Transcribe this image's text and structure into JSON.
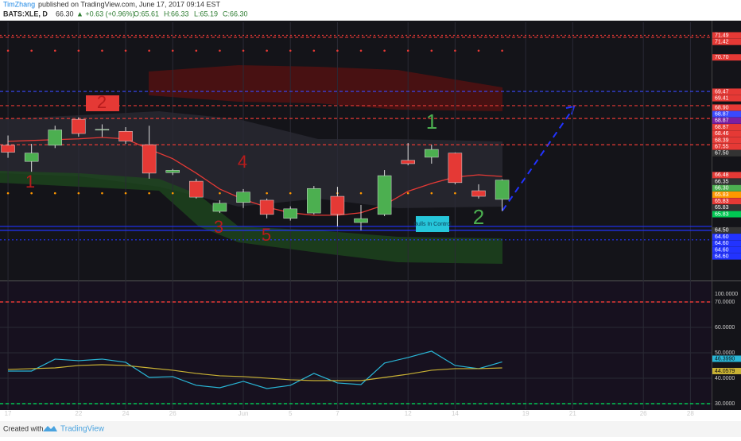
{
  "header": {
    "author": "TimZhang",
    "published": "published on TradingView.com, June 17, 2017 09:14 EST",
    "symbol": "BATS:XLE, D",
    "last": "66.30",
    "change": "▲ +0.63 (+0.96%)",
    "open": "O:65.61",
    "high": "H:66.33",
    "low": "L:65.19",
    "close": "C:66.30"
  },
  "footer": {
    "created": "Created with",
    "brand": "TradingView"
  },
  "chart_data": [
    {
      "type": "candlestick",
      "xlim": [
        -0.34,
        29.9
      ],
      "xticks": [
        {
          "value": 0,
          "label": "17"
        },
        {
          "value": 3,
          "label": "22"
        },
        {
          "value": 5,
          "label": "24"
        },
        {
          "value": 7,
          "label": "26"
        },
        {
          "value": 10,
          "label": "Jun"
        },
        {
          "value": 12,
          "label": "5"
        },
        {
          "value": 14,
          "label": "7"
        },
        {
          "value": 17,
          "label": "12"
        },
        {
          "value": 19,
          "label": "14"
        },
        {
          "value": 22,
          "label": "19"
        },
        {
          "value": 24,
          "label": "21"
        },
        {
          "value": 27,
          "label": "26"
        },
        {
          "value": 29,
          "label": "28"
        }
      ],
      "ylim": [
        62.73,
        71.96
      ],
      "open": [
        67.55,
        66.97,
        67.55,
        68.48,
        68.1,
        68.05,
        67.57,
        66.57,
        66.26,
        65.18,
        65.5,
        65.58,
        64.93,
        65.12,
        65.72,
        64.78,
        65.07,
        67.01,
        67.12,
        67.27,
        65.92,
        65.61
      ],
      "high": [
        67.9,
        67.6,
        68.25,
        68.55,
        68.3,
        68.2,
        68.25,
        66.7,
        66.35,
        65.58,
        65.98,
        65.64,
        65.36,
        66.09,
        66.06,
        65.41,
        66.66,
        67.63,
        67.57,
        67.29,
        66.15,
        66.33
      ],
      "low": [
        67.1,
        66.6,
        67.45,
        67.86,
        67.85,
        67.6,
        66.35,
        66.48,
        65.64,
        65.12,
        65.3,
        64.93,
        64.85,
        65.07,
        64.64,
        64.5,
        65.01,
        66.83,
        66.89,
        66.15,
        65.64,
        65.19
      ],
      "close": [
        67.3,
        67.27,
        68.1,
        67.97,
        68.12,
        67.7,
        66.55,
        66.65,
        65.69,
        65.47,
        65.87,
        65.07,
        65.27,
        66.0,
        65.07,
        64.92,
        66.46,
        66.89,
        67.4,
        66.21,
        65.72,
        66.3
      ],
      "up_color": "#4caf50",
      "down_color": "#e53935",
      "series": [
        {
          "color": "#e53935",
          "values": [
            67.69,
            67.72,
            67.75,
            67.78,
            67.83,
            67.78,
            67.41,
            67.07,
            66.55,
            65.98,
            65.61,
            65.33,
            65.13,
            65.04,
            65.04,
            65.13,
            65.41,
            65.9,
            66.18,
            66.41,
            66.49,
            66.43
          ]
        }
      ],
      "levels": [
        {
          "value": 71.49,
          "color": "#e53935",
          "style": "dot"
        },
        {
          "value": 71.42,
          "color": "#e53935",
          "style": "dash"
        },
        {
          "value": 69.48,
          "color": "#3949ff",
          "style": "dash"
        },
        {
          "value": 68.97,
          "color": "#e53935",
          "style": "dash"
        },
        {
          "value": 68.51,
          "color": "#e53935",
          "style": "dash"
        },
        {
          "value": 67.57,
          "color": "#e53935",
          "style": "dash"
        },
        {
          "value": 64.64,
          "color": "#2233ff",
          "style": "solid"
        },
        {
          "value": 64.5,
          "color": "#2233ff",
          "style": "solid"
        },
        {
          "value": 64.16,
          "color": "#2233ff",
          "style": "dot"
        }
      ],
      "dot_rows": [
        {
          "value": 70.94,
          "color": "#e53935"
        },
        {
          "value": 65.83,
          "color": "#ff9800"
        }
      ],
      "axis_labels": [
        {
          "value": 71.49,
          "label": "71.49",
          "color": "#e53935"
        },
        {
          "value": 71.42,
          "label": "71.42",
          "color": "#e53935"
        },
        {
          "value": 70.7,
          "label": "70.70",
          "color": "#e53935"
        },
        {
          "value": 69.47,
          "label": "69.47",
          "color": "#e53935"
        },
        {
          "value": 69.41,
          "label": "69.41",
          "color": "#e53935"
        },
        {
          "value": 68.9,
          "label": "68.90",
          "color": "#e53935"
        },
        {
          "value": 68.87,
          "label": "68.87",
          "color": "#3949ff"
        },
        {
          "value": 68.87,
          "label": "68.87",
          "color": "#7b1fa2"
        },
        {
          "value": 68.87,
          "label": "68.87",
          "color": "#e53935"
        },
        {
          "value": 68.46,
          "label": "68.46",
          "color": "#e53935"
        },
        {
          "value": 68.39,
          "label": "68.39",
          "color": "#e53935"
        },
        {
          "value": 67.55,
          "label": "67.55",
          "color": "#e53935"
        },
        {
          "value": 67.5,
          "label": "67.50",
          "color": "#333333"
        },
        {
          "value": 66.48,
          "label": "66.48",
          "color": "#e53935"
        },
        {
          "value": 66.35,
          "label": "66.35",
          "color": "#333333"
        },
        {
          "value": 66.3,
          "label": "66.30",
          "color": "#4caf50"
        },
        {
          "value": 65.83,
          "label": "65.83",
          "color": "#ff9800"
        },
        {
          "value": 65.83,
          "label": "65.83",
          "color": "#e53935"
        },
        {
          "value": 65.83,
          "label": "65.83",
          "color": "#333333"
        },
        {
          "value": 65.83,
          "label": "65.83",
          "color": "#00c853"
        },
        {
          "value": 64.5,
          "label": "64.50",
          "color": "#333333"
        },
        {
          "value": 64.6,
          "label": "64.60",
          "color": "#2233ff"
        },
        {
          "value": 64.6,
          "label": "64.60",
          "color": "#2233ff"
        },
        {
          "value": 64.6,
          "label": "64.60",
          "color": "#2233ff"
        },
        {
          "value": 64.6,
          "label": "64.60",
          "color": "#2233ff"
        }
      ],
      "annotations": [
        {
          "text": "1",
          "color": "#b71c1c"
        },
        {
          "text": "2",
          "color": "#b71c1c"
        },
        {
          "text": "3",
          "color": "#b71c1c"
        },
        {
          "text": "4",
          "color": "#b71c1c"
        },
        {
          "text": "5",
          "color": "#b71c1c"
        },
        {
          "text": "1",
          "color": "#4caf50"
        },
        {
          "text": "2",
          "color": "#4caf50"
        }
      ],
      "callout": "Bulls In Control"
    },
    {
      "type": "line",
      "ylim": [
        27.8,
        77.8
      ],
      "top_label": "100.0000",
      "yticks": [
        {
          "value": 30,
          "label": "30.0000"
        },
        {
          "value": 40,
          "label": "40.0000"
        },
        {
          "value": 50,
          "label": "50.0000"
        },
        {
          "value": 60,
          "label": "60.0000"
        },
        {
          "value": 70,
          "label": "70.0000"
        }
      ],
      "bands": [
        {
          "value": 70,
          "color": "#e53935"
        },
        {
          "value": 30,
          "color": "#00c853"
        }
      ],
      "series": [
        {
          "color": "#29b6d6",
          "last_label": "46.3990",
          "values": [
            42.81,
            42.81,
            47.5,
            46.88,
            47.5,
            46.25,
            40.31,
            40.63,
            37.19,
            36.25,
            38.75,
            35.94,
            37.19,
            41.88,
            38.13,
            37.5,
            45.94,
            48.13,
            50.63,
            45.0,
            43.75,
            46.399
          ]
        },
        {
          "color": "#c9b234",
          "last_label": "44.0579",
          "values": [
            43.44,
            43.75,
            44.06,
            45.0,
            45.31,
            45.0,
            44.06,
            43.13,
            41.88,
            40.94,
            40.63,
            40.0,
            39.38,
            39.06,
            39.06,
            39.06,
            40.31,
            41.56,
            43.13,
            43.75,
            43.75,
            44.0579
          ]
        }
      ]
    }
  ]
}
